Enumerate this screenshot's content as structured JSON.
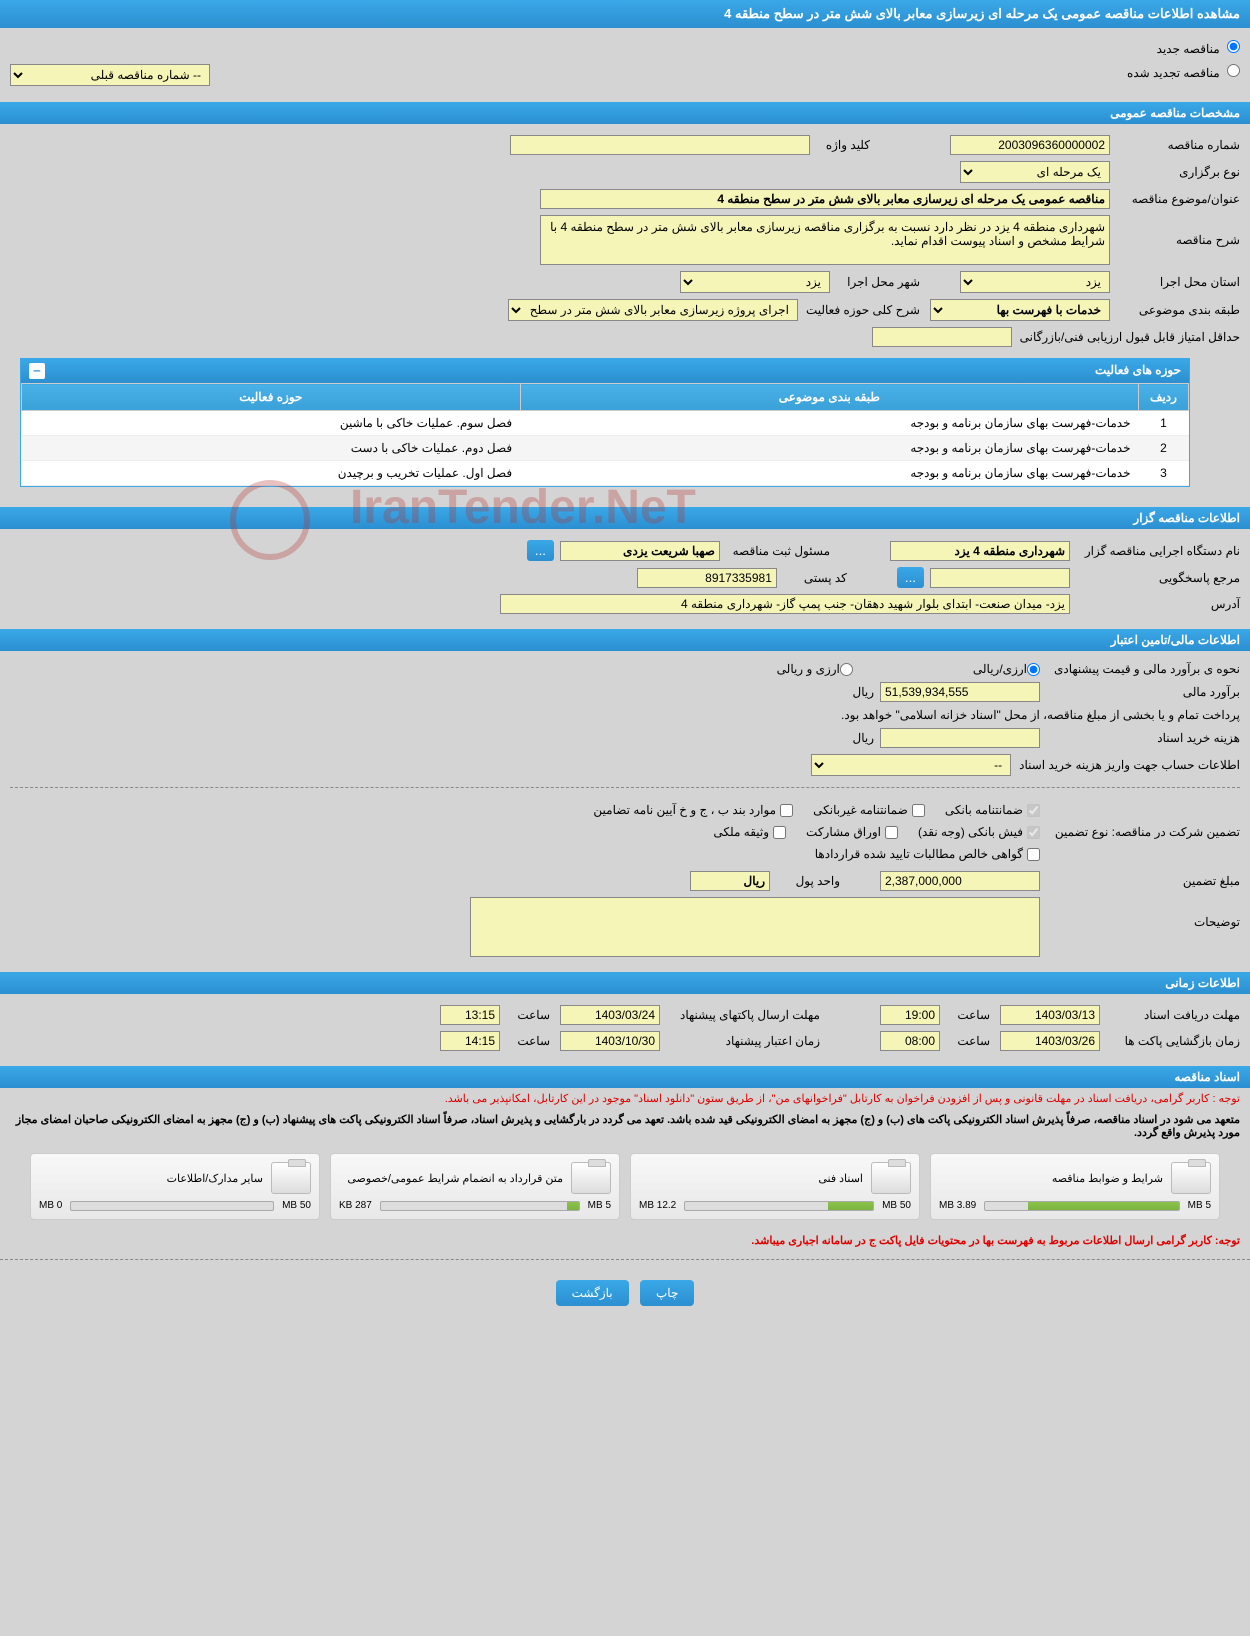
{
  "page_title": "مشاهده اطلاعات مناقصه عمومی یک مرحله ای زیرسازی معابر بالای شش متر در سطح منطقه 4",
  "tender_type": {
    "new_label": "مناقصه جدید",
    "renewed_label": "مناقصه تجدید شده",
    "prev_select_default": "-- شماره مناقصه قبلی"
  },
  "sections": {
    "general": "مشخصات مناقصه عمومی",
    "activities": "حوزه های فعالیت",
    "organizer": "اطلاعات مناقصه گزار",
    "financial": "اطلاعات مالی/تامین اعتبار",
    "timing": "اطلاعات زمانی",
    "documents": "اسناد مناقصه"
  },
  "general": {
    "tender_no_label": "شماره مناقصه",
    "tender_no": "2003096360000002",
    "keyword_label": "کلید واژه",
    "keyword": "",
    "holding_type_label": "نوع برگزاری",
    "holding_type": "یک مرحله ای",
    "title_label": "عنوان/موضوع مناقصه",
    "title": "مناقصه عمومی یک مرحله ای زیرسازی معابر بالای شش متر در سطح منطقه 4",
    "desc_label": "شرح مناقصه",
    "desc": "شهرداری منطقه 4 یزد در نظر دارد نسبت به برگزاری مناقصه زیرسازی معابر بالای شش متر در سطح منطقه 4 با شرایط مشخص و اسناد پیوست اقدام نماید.",
    "province_label": "استان محل اجرا",
    "province": "یزد",
    "city_label": "شهر محل اجرا",
    "city": "یزد",
    "category_label": "طبقه بندی موضوعی",
    "category": "خدمات با فهرست بها",
    "activity_scope_label": "شرح کلی حوزه فعالیت",
    "activity_scope": "اجرای پروژه زیرسازی معابر بالای شش متر در سطح",
    "min_score_label": "حداقل امتیاز قابل قبول ارزیابی فنی/بازرگانی",
    "min_score": ""
  },
  "activities_table": {
    "col_row": "ردیف",
    "col_category": "طبقه بندی موضوعی",
    "col_scope": "حوزه فعالیت",
    "rows": [
      {
        "n": "1",
        "cat": "خدمات-فهرست بهای سازمان برنامه و بودجه",
        "scope": "فصل سوم. عملیات خاکی با ماشین"
      },
      {
        "n": "2",
        "cat": "خدمات-فهرست بهای سازمان برنامه و بودجه",
        "scope": "فصل دوم. عملیات خاکی با دست"
      },
      {
        "n": "3",
        "cat": "خدمات-فهرست بهای سازمان برنامه و بودجه",
        "scope": "فصل اول. عملیات تخریب و برچیدن"
      }
    ]
  },
  "organizer": {
    "executive_label": "نام دستگاه اجرایی مناقصه گزار",
    "executive": "شهرداری منطقه 4 یزد",
    "registrar_label": "مسئول ثبت مناقصه",
    "registrar": "صهبا شریعت یزدی",
    "contact_label": "مرجع پاسخگویی",
    "contact": "",
    "postal_label": "کد پستی",
    "postal": "8917335981",
    "address_label": "آدرس",
    "address": "یزد- میدان صنعت- ابتدای بلوار شهید دهقان- جنب پمپ گاز- شهرداری منطقه 4"
  },
  "financial": {
    "estimate_method_label": "نحوه ی برآورد مالی و قیمت پیشنهادی",
    "currency_rial_label": "ارزی/ریالی",
    "currency_both_label": "ارزی و ریالی",
    "estimate_label": "برآورد مالی",
    "estimate": "51,539,934,555",
    "rial": "ریال",
    "payment_note": "پرداخت تمام و یا بخشی از مبلغ مناقصه، از محل \"اسناد خزانه اسلامی\" خواهد بود.",
    "doc_cost_label": "هزینه خرید اسناد",
    "doc_cost": "",
    "account_info_label": "اطلاعات حساب جهت واریز هزینه خرید اسناد",
    "account_info_default": "--",
    "guarantee_type_label": "تضمین شرکت در مناقصه:   نوع تضمین",
    "guarantees": {
      "bank_guarantee": "ضمانتنامه بانکی",
      "nonbank_guarantee": "ضمانتنامه غیربانکی",
      "items_bje": "موارد بند ب ، ج و خ آیین نامه تضامین",
      "bank_receipt": "فیش بانکی (وجه نقد)",
      "securities": "اوراق مشارکت",
      "property_deed": "وثیقه ملکی",
      "net_receivables": "گواهی خالص مطالبات تایید شده قراردادها"
    },
    "guarantee_amount_label": "مبلغ تضمین",
    "guarantee_amount": "2,387,000,000",
    "money_unit_label": "واحد پول",
    "money_unit": "ریال",
    "notes_label": "توضیحات",
    "notes": ""
  },
  "timing": {
    "doc_receive_deadline_label": "مهلت دریافت اسناد",
    "doc_receive_deadline_date": "1403/03/13",
    "doc_receive_deadline_time": "19:00",
    "envelope_open_label": "زمان بازگشایی پاکت ها",
    "envelope_open_date": "1403/03/26",
    "envelope_open_time": "08:00",
    "proposal_deadline_label": "مهلت ارسال پاکتهای پیشنهاد",
    "proposal_deadline_date": "1403/03/24",
    "proposal_deadline_time": "13:15",
    "validity_label": "زمان اعتبار پیشنهاد",
    "validity_date": "1403/10/30",
    "validity_time": "14:15",
    "time_label": "ساعت"
  },
  "documents": {
    "note1": "توجه : کاربر گرامی، دریافت اسناد در مهلت قانونی و پس از افزودن فراخوان به کارتابل \"فراخوانهای من\"، از طریق ستون \"دانلود اسناد\" موجود در این کارتابل، امکانپذیر می باشد.",
    "note2": "متعهد می شود در اسناد مناقصه، صرفاً پذیرش اسناد الکترونیکی پاکت های (ب) و (ج) مجهز به امضای الکترونیکی قید شده باشد. تعهد می گردد در بارگشایی و پذیرش اسناد، صرفاً اسناد الکترونیکی پاکت های پیشنهاد (ب) و (ج) مجهز به امضای الکترونیکی صاحبان امضای مجاز مورد پذیرش واقع گردد.",
    "files": [
      {
        "title": "شرایط و ضوابط مناقصه",
        "used": "3.89 MB",
        "total": "5 MB",
        "pct": 78
      },
      {
        "title": "اسناد فنی",
        "used": "12.2 MB",
        "total": "50 MB",
        "pct": 24
      },
      {
        "title": "متن قرارداد به انضمام شرایط عمومی/خصوصی",
        "used": "287 KB",
        "total": "5 MB",
        "pct": 6
      },
      {
        "title": "سایر مدارک/اطلاعات",
        "used": "0 MB",
        "total": "50 MB",
        "pct": 0
      }
    ],
    "bottom_note": "توجه: کاربر گرامی ارسال اطلاعات مربوط به فهرست بها در محتویات فایل پاکت ج در سامانه اجباری میباشد."
  },
  "buttons": {
    "print": "چاپ",
    "back": "بازگشت",
    "dots": "..."
  },
  "watermark": "IranTender.NeT"
}
